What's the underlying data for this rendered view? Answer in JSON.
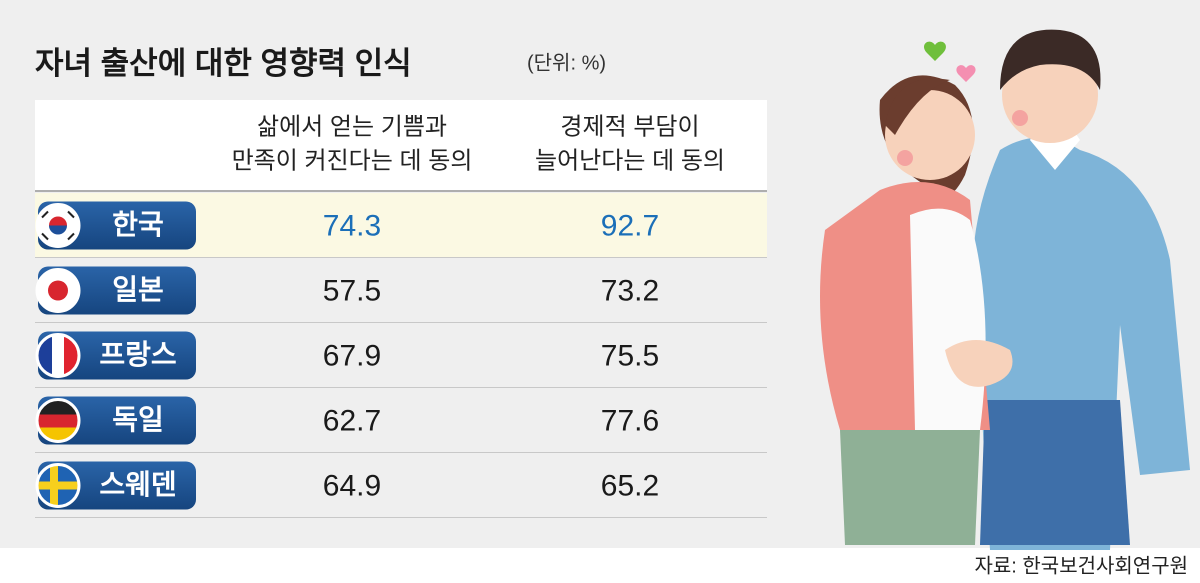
{
  "header": {
    "title": "자녀 출산에 대한 영향력 인식",
    "unit": "(단위: %)"
  },
  "table": {
    "columns": [
      [
        "삶에서 얻는 기쁨과",
        "만족이 커진다는 데 동의"
      ],
      [
        "경제적 부담이",
        "늘어난다는 데 동의"
      ]
    ],
    "rows": [
      {
        "country": "한국",
        "values": [
          74.3,
          92.7
        ]
      },
      {
        "country": "일본",
        "values": [
          57.5,
          73.2
        ]
      },
      {
        "country": "프랑스",
        "values": [
          67.9,
          75.5
        ]
      },
      {
        "country": "독일",
        "values": [
          62.7,
          77.6
        ]
      },
      {
        "country": "스웨덴",
        "values": [
          64.9,
          65.2
        ]
      }
    ]
  },
  "source": "자료: 한국보건사회연구원"
}
